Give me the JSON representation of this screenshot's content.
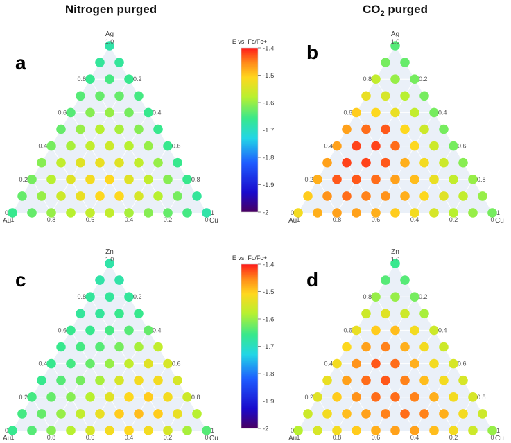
{
  "figure": {
    "column_titles": [
      "Nitrogen purged",
      "CO2 purged"
    ],
    "subscript_two": "2",
    "colorbar": {
      "title": "E vs. Fc/Fc+",
      "min": -2,
      "max": -1.4,
      "ticks": [
        "-1.4",
        "-1.5",
        "-1.6",
        "-1.7",
        "-1.8",
        "-1.9",
        "-2"
      ]
    }
  },
  "chart_data": [
    {
      "type": "scatter",
      "subtype": "ternary",
      "panel": "a",
      "column": "Nitrogen purged",
      "axes": {
        "top": "Ag",
        "left": "Au",
        "right": "Cu"
      },
      "axis_ticks": {
        "top": [
          "1.0",
          "0.8",
          "0.6",
          "0.4",
          "0.2",
          "0"
        ],
        "bottom": [
          "1",
          "0.8",
          "0.6",
          "0.4",
          "0.2",
          "0"
        ],
        "right": [
          "0.2",
          "0.4",
          "0.6",
          "0.8",
          "1"
        ]
      },
      "colorscale_range": [
        -2,
        -1.4
      ],
      "grid_step": 0.1,
      "rows_top_to_bottom": [
        [
          -1.68
        ],
        [
          -1.67,
          -1.67
        ],
        [
          -1.66,
          -1.65,
          -1.66
        ],
        [
          -1.64,
          -1.63,
          -1.63,
          -1.65
        ],
        [
          -1.64,
          -1.61,
          -1.6,
          -1.62,
          -1.66
        ],
        [
          -1.63,
          -1.6,
          -1.58,
          -1.59,
          -1.61,
          -1.66
        ],
        [
          -1.62,
          -1.59,
          -1.57,
          -1.56,
          -1.58,
          -1.6,
          -1.66
        ],
        [
          -1.61,
          -1.57,
          -1.54,
          -1.53,
          -1.54,
          -1.57,
          -1.6,
          -1.66
        ],
        [
          -1.62,
          -1.58,
          -1.54,
          -1.52,
          -1.51,
          -1.54,
          -1.57,
          -1.61,
          -1.66
        ],
        [
          -1.63,
          -1.6,
          -1.56,
          -1.53,
          -1.51,
          -1.51,
          -1.55,
          -1.58,
          -1.62,
          -1.67
        ],
        [
          -1.66,
          -1.63,
          -1.6,
          -1.58,
          -1.57,
          -1.57,
          -1.59,
          -1.61,
          -1.63,
          -1.65,
          -1.68
        ]
      ]
    },
    {
      "type": "scatter",
      "subtype": "ternary",
      "panel": "b",
      "column": "CO2 purged",
      "axes": {
        "top": "Ag",
        "left": "Au",
        "right": "Cu"
      },
      "axis_ticks": {
        "top": [
          "1.0",
          "0.8",
          "0.6",
          "0.4",
          "0.2",
          "0"
        ],
        "bottom": [
          "1",
          "0.8",
          "0.6",
          "0.4",
          "0.2",
          "0"
        ],
        "right": [
          "0.2",
          "0.4",
          "0.6",
          "0.8",
          "1"
        ]
      },
      "colorscale_range": [
        -2,
        -1.4
      ],
      "grid_step": 0.1,
      "rows_top_to_bottom": [
        [
          -1.64
        ],
        [
          -1.62,
          -1.63
        ],
        [
          -1.57,
          -1.6,
          -1.62
        ],
        [
          -1.53,
          -1.55,
          -1.58,
          -1.62
        ],
        [
          -1.5,
          -1.51,
          -1.53,
          -1.57,
          -1.62
        ],
        [
          -1.47,
          -1.44,
          -1.43,
          -1.51,
          -1.56,
          -1.62
        ],
        [
          -1.47,
          -1.42,
          -1.42,
          -1.44,
          -1.51,
          -1.56,
          -1.62
        ],
        [
          -1.47,
          -1.42,
          -1.42,
          -1.43,
          -1.48,
          -1.52,
          -1.56,
          -1.61
        ],
        [
          -1.48,
          -1.43,
          -1.43,
          -1.44,
          -1.47,
          -1.49,
          -1.53,
          -1.57,
          -1.6
        ],
        [
          -1.5,
          -1.46,
          -1.44,
          -1.45,
          -1.46,
          -1.48,
          -1.51,
          -1.54,
          -1.57,
          -1.6
        ],
        [
          -1.52,
          -1.48,
          -1.47,
          -1.47,
          -1.48,
          -1.5,
          -1.52,
          -1.55,
          -1.58,
          -1.6,
          -1.62
        ]
      ]
    },
    {
      "type": "scatter",
      "subtype": "ternary",
      "panel": "c",
      "column": "Nitrogen purged",
      "axes": {
        "top": "Zn",
        "left": "Au",
        "right": "Cu"
      },
      "axis_ticks": {
        "top": [
          "1.0",
          "0.8",
          "0.6",
          "0.4",
          "0.2",
          "0"
        ],
        "bottom": [
          "1",
          "0.8",
          "0.6",
          "0.4",
          "0.2",
          "0"
        ],
        "right": [
          "0.2",
          "0.4",
          "0.6",
          "0.8",
          "1"
        ]
      },
      "colorscale_range": [
        -2,
        -1.4
      ],
      "grid_step": 0.1,
      "rows_top_to_bottom": [
        [
          -1.68
        ],
        [
          -1.68,
          -1.68
        ],
        [
          -1.67,
          -1.67,
          -1.67
        ],
        [
          -1.67,
          -1.67,
          -1.66,
          -1.66
        ],
        [
          -1.66,
          -1.66,
          -1.65,
          -1.64,
          -1.63
        ],
        [
          -1.66,
          -1.65,
          -1.64,
          -1.62,
          -1.59,
          -1.57
        ],
        [
          -1.66,
          -1.65,
          -1.63,
          -1.6,
          -1.57,
          -1.54,
          -1.55
        ],
        [
          -1.66,
          -1.64,
          -1.62,
          -1.59,
          -1.55,
          -1.52,
          -1.52,
          -1.55
        ],
        [
          -1.65,
          -1.63,
          -1.61,
          -1.58,
          -1.54,
          -1.51,
          -1.5,
          -1.52,
          -1.56
        ],
        [
          -1.65,
          -1.63,
          -1.6,
          -1.57,
          -1.53,
          -1.5,
          -1.49,
          -1.5,
          -1.53,
          -1.58
        ],
        [
          -1.66,
          -1.64,
          -1.61,
          -1.58,
          -1.55,
          -1.52,
          -1.51,
          -1.52,
          -1.55,
          -1.59,
          -1.64
        ]
      ]
    },
    {
      "type": "scatter",
      "subtype": "ternary",
      "panel": "d",
      "column": "CO2 purged",
      "axes": {
        "top": "Zn",
        "left": "Au",
        "right": "Cu"
      },
      "axis_ticks": {
        "top": [
          "1.0",
          "0.8",
          "0.6",
          "0.4",
          "0.2",
          "0"
        ],
        "bottom": [
          "1",
          "0.8",
          "0.6",
          "0.4",
          "0.2",
          "0"
        ],
        "right": [
          "0.2",
          "0.4",
          "0.6",
          "0.8",
          "1"
        ]
      },
      "colorscale_range": [
        -2,
        -1.4
      ],
      "grid_step": 0.1,
      "rows_top_to_bottom": [
        [
          -1.66
        ],
        [
          -1.64,
          -1.64
        ],
        [
          -1.6,
          -1.6,
          -1.62
        ],
        [
          -1.56,
          -1.54,
          -1.56,
          -1.59
        ],
        [
          -1.53,
          -1.5,
          -1.49,
          -1.52,
          -1.56
        ],
        [
          -1.51,
          -1.47,
          -1.45,
          -1.48,
          -1.52,
          -1.56
        ],
        [
          -1.52,
          -1.46,
          -1.43,
          -1.44,
          -1.48,
          -1.52,
          -1.55
        ],
        [
          -1.53,
          -1.47,
          -1.44,
          -1.43,
          -1.45,
          -1.49,
          -1.52,
          -1.55
        ],
        [
          -1.54,
          -1.5,
          -1.46,
          -1.44,
          -1.44,
          -1.45,
          -1.48,
          -1.52,
          -1.55
        ],
        [
          -1.56,
          -1.52,
          -1.49,
          -1.47,
          -1.45,
          -1.44,
          -1.45,
          -1.48,
          -1.52,
          -1.56
        ],
        [
          -1.58,
          -1.55,
          -1.52,
          -1.5,
          -1.48,
          -1.47,
          -1.47,
          -1.49,
          -1.52,
          -1.56,
          -1.6
        ]
      ]
    }
  ]
}
